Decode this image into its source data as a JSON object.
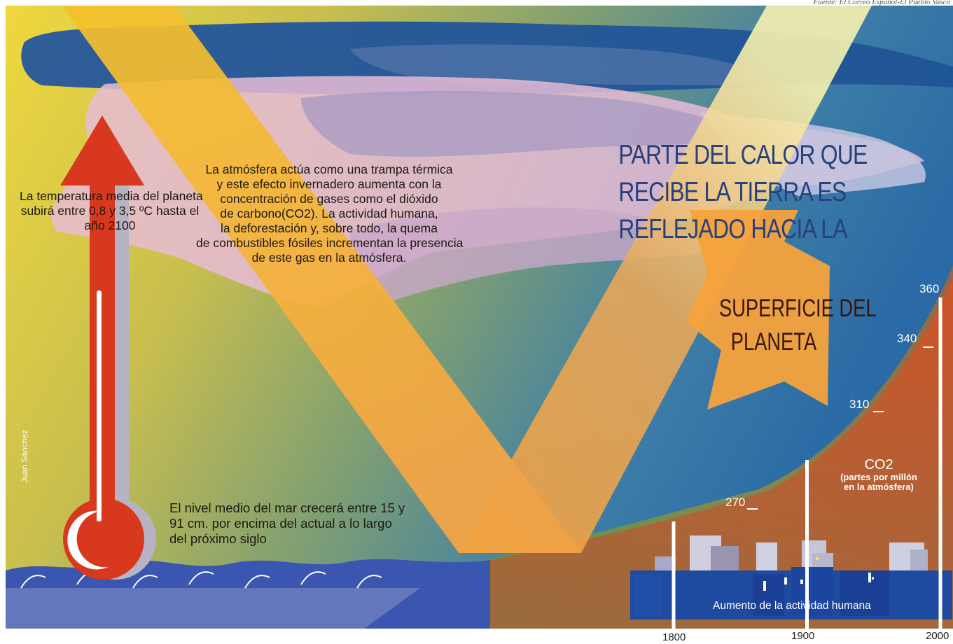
{
  "source": "Fuente: El Correo Español-El Pueblo Vasco",
  "author": "Juan Sánchez",
  "temperature_text": [
    "La temperatura media del planeta",
    "subirá entre 0,8 y 3,5 ºC hasta el",
    "año 2100"
  ],
  "atmosphere_text": [
    "La atmósfera actúa como una trampa térmica",
    "y este efecto invernadero aumenta con la",
    "concentración de gases como el dióxido",
    "de carbono(CO2). La actividad humana,",
    "la deforestación y, sobre todo, la quema",
    "de combustibles fósiles incrementan la presencia",
    "de este gas en la atmósfera."
  ],
  "headline": [
    "PARTE DEL CALOR QUE",
    "RECIBE LA TIERRA ES",
    "REFLEJADO HACIA LA"
  ],
  "surface_label": [
    "SUPERFICIE DEL",
    "PLANETA"
  ],
  "sea_text": [
    "El nivel medio del mar crecerá entre 15 y",
    "91 cm. por encima del actual a lo largo",
    "del próximo siglo"
  ],
  "co2_chart": {
    "label": "CO2",
    "subtitle": [
      "(partes por millón",
      "en la atmósfera)"
    ],
    "ticks": [
      {
        "value": 270,
        "label": "270"
      },
      {
        "value": 310,
        "label": "310"
      },
      {
        "value": 340,
        "label": "340"
      },
      {
        "value": 360,
        "label": "360"
      }
    ],
    "years": [
      {
        "year": 1800,
        "label": "1800"
      },
      {
        "year": 1900,
        "label": "1900"
      },
      {
        "year": 2000,
        "label": "2000"
      }
    ]
  },
  "activity_label": "Aumento de la actividad humana",
  "colors": {
    "sun_band": "#f3b23e",
    "reflected_band": "#f7efad",
    "thermometer": "#d8391e",
    "sea": "#3450a8",
    "co2_area": "#d4582a",
    "sky": "#2f74b0",
    "city": "#1e4aa0"
  }
}
